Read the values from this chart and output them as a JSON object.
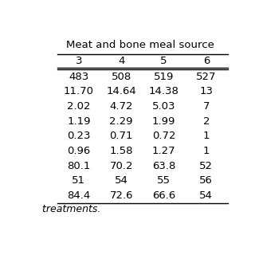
{
  "title": "Meat and bone meal source",
  "col_headers": [
    "3",
    "4",
    "5",
    "6"
  ],
  "rows": [
    [
      "483",
      "508",
      "519",
      "527"
    ],
    [
      "11.70",
      "14.64",
      "14.38",
      "13"
    ],
    [
      "2.02",
      "4.72",
      "5.03",
      "7"
    ],
    [
      "1.19",
      "2.29",
      "1.99",
      "2"
    ],
    [
      "0.23",
      "0.71",
      "0.72",
      "1"
    ],
    [
      "0.96",
      "1.58",
      "1.27",
      "1"
    ],
    [
      "80.1",
      "70.2",
      "63.8",
      "52"
    ],
    [
      "51",
      "54",
      "55",
      "56"
    ],
    [
      "84.4",
      "72.6",
      "66.6",
      "54"
    ]
  ],
  "footer": "  treatments.",
  "bg_color": "#ffffff",
  "text_color": "#000000",
  "font_size": 9.5
}
